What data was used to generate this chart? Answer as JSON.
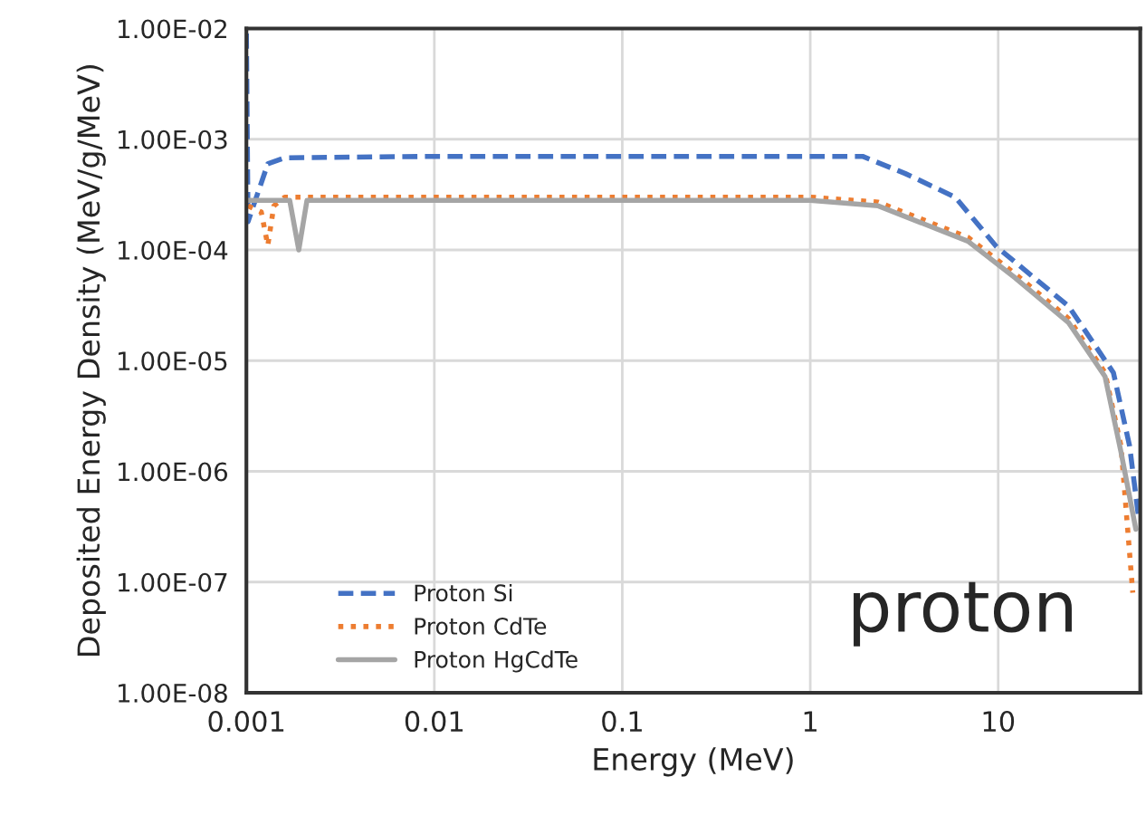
{
  "chart_data": {
    "type": "line",
    "xlabel": "Energy (MeV)",
    "ylabel": "Deposited Energy Density (MeV/g/MeV)",
    "log": "xy",
    "grid": true,
    "legend": "bottom left",
    "xlim": [
      0.001,
      57
    ],
    "ylim": [
      1e-08,
      0.01
    ],
    "xticks": [
      0.001,
      0.01,
      0.1,
      1,
      10
    ],
    "yticks": [
      {
        "value": 1e-08,
        "label": "1.00E-08"
      },
      {
        "value": 1e-07,
        "label": "1.00E-07"
      },
      {
        "value": 1e-06,
        "label": "1.00E-06"
      },
      {
        "value": 1e-05,
        "label": "1.00E-05"
      },
      {
        "value": 0.0001,
        "label": "1.00E-04"
      },
      {
        "value": 0.001,
        "label": "1.00E-03"
      },
      {
        "value": 0.01,
        "label": "1.00E-02"
      }
    ],
    "annotations": [
      "proton"
    ],
    "series": [
      {
        "name": "Proton Si",
        "color": "#4472c4",
        "line_style": "dashed",
        "x": [
          0.001,
          0.00102,
          0.0013,
          0.0016,
          0.01,
          0.1,
          1,
          1.9,
          3.2,
          5.9,
          9.8,
          23.7,
          41,
          50,
          56
        ],
        "values": [
          0.009,
          0.00018,
          0.0006,
          0.00068,
          0.0007,
          0.0007,
          0.0007,
          0.0007,
          0.00049,
          0.0003,
          0.000107,
          3.1e-05,
          7.8e-06,
          1.7e-06,
          3.7e-07
        ]
      },
      {
        "name": "Proton CdTe",
        "color": "#ed7d31",
        "line_style": "dotted",
        "x": [
          0.00102,
          0.0012,
          0.0013,
          0.0014,
          0.0016,
          0.01,
          0.1,
          1,
          2.3,
          6.9,
          12.3,
          23.7,
          37,
          45,
          52
        ],
        "values": [
          0.00025,
          0.00022,
          0.00011,
          0.00025,
          0.0003,
          0.0003,
          0.0003,
          0.0003,
          0.00027,
          0.00013,
          6.1e-05,
          2.4e-05,
          7.8e-06,
          1.7e-06,
          8e-08
        ]
      },
      {
        "name": "Proton HgCdTe",
        "color": "#a5a5a5",
        "line_style": "solid",
        "x": [
          0.00102,
          0.0017,
          0.0019,
          0.0021,
          0.01,
          0.1,
          1,
          2.3,
          6.9,
          12.3,
          23.7,
          37,
          45,
          54
        ],
        "values": [
          0.00028,
          0.00028,
          0.0001,
          0.00028,
          0.00028,
          0.00028,
          0.00028,
          0.00025,
          0.00012,
          5.6e-05,
          2.2e-05,
          7.2e-06,
          1.5e-06,
          3e-07
        ]
      }
    ]
  }
}
